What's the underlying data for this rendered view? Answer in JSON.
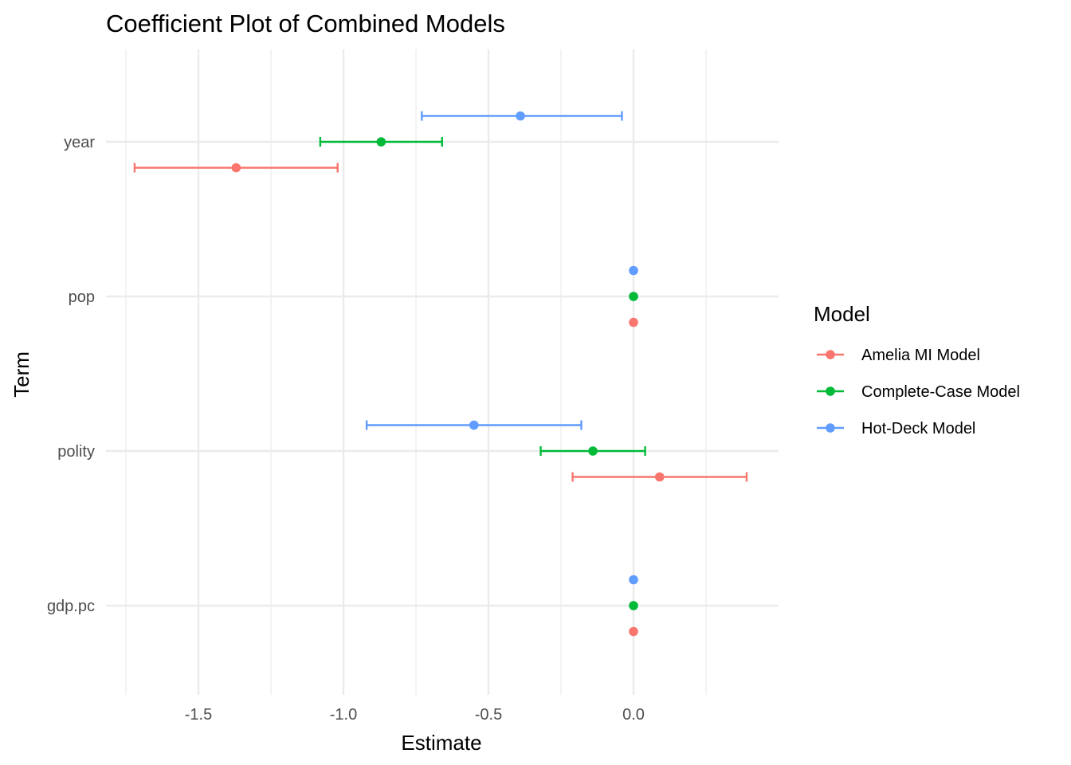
{
  "chart_data": {
    "type": "errorbar",
    "orientation": "horizontal",
    "title": "Coefficient Plot of Combined Models",
    "xlabel": "Estimate",
    "ylabel": "Term",
    "xlim": [
      -1.75,
      0.4
    ],
    "x_ticks": [
      -1.5,
      -1.0,
      -0.5,
      0.0
    ],
    "x_tick_labels": [
      "-1.5",
      "-1.0",
      "-0.5",
      "0.0"
    ],
    "categories": [
      "year",
      "pop",
      "polity",
      "gdp.pc"
    ],
    "grid": true,
    "legend": {
      "title": "Model",
      "position": "right"
    },
    "series": [
      {
        "name": "Amelia MI Model",
        "color": "#F8766D",
        "points": [
          {
            "term": "year",
            "estimate": -1.37,
            "low": -1.72,
            "high": -1.02
          },
          {
            "term": "pop",
            "estimate": 0.0,
            "low": 0.0,
            "high": 0.0
          },
          {
            "term": "polity",
            "estimate": 0.09,
            "low": -0.21,
            "high": 0.39
          },
          {
            "term": "gdp.pc",
            "estimate": 0.0,
            "low": 0.0,
            "high": 0.0
          }
        ]
      },
      {
        "name": "Complete-Case Model",
        "color": "#00BA38",
        "points": [
          {
            "term": "year",
            "estimate": -0.87,
            "low": -1.08,
            "high": -0.66
          },
          {
            "term": "pop",
            "estimate": 0.0,
            "low": 0.0,
            "high": 0.0
          },
          {
            "term": "polity",
            "estimate": -0.14,
            "low": -0.32,
            "high": 0.04
          },
          {
            "term": "gdp.pc",
            "estimate": 0.0,
            "low": 0.0,
            "high": 0.0
          }
        ]
      },
      {
        "name": "Hot-Deck Model",
        "color": "#619CFF",
        "points": [
          {
            "term": "year",
            "estimate": -0.39,
            "low": -0.73,
            "high": -0.04
          },
          {
            "term": "pop",
            "estimate": 0.0,
            "low": 0.0,
            "high": 0.0
          },
          {
            "term": "polity",
            "estimate": -0.55,
            "low": -0.92,
            "high": -0.18
          },
          {
            "term": "gdp.pc",
            "estimate": 0.0,
            "low": 0.0,
            "high": 0.0
          }
        ]
      }
    ]
  }
}
